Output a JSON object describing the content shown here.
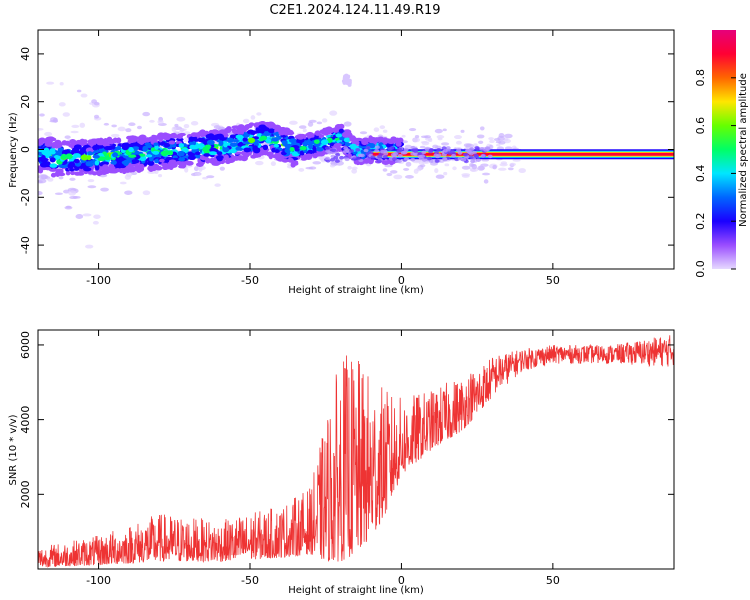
{
  "title": "C2E1.2024.124.11.49.R19",
  "chart_data": [
    {
      "type": "heatmap",
      "xlabel": "Height of straight line (km)",
      "ylabel": "Frequency (Hz)",
      "xlim": [
        -120,
        90
      ],
      "ylim": [
        -50,
        50
      ],
      "x_ticks": [
        -100,
        -50,
        0,
        50
      ],
      "y_ticks": [
        -40,
        -20,
        0,
        20,
        40
      ],
      "colorbar": {
        "label": "Normalized spectral amplitude",
        "range": [
          0,
          1
        ],
        "ticks": [
          "0.0",
          "0.2",
          "0.4",
          "0.6",
          "0.8"
        ],
        "colors": [
          "#e6d9ff",
          "#9a4dff",
          "#1a00ff",
          "#0066ff",
          "#00e6ff",
          "#00ff66",
          "#66ff00",
          "#ffe600",
          "#ff6600",
          "#ff0033",
          "#e6007a"
        ]
      },
      "ridge_points": [
        {
          "x": -115,
          "y": -4
        },
        {
          "x": -100,
          "y": -3
        },
        {
          "x": -80,
          "y": -1
        },
        {
          "x": -60,
          "y": 1
        },
        {
          "x": -45,
          "y": 5
        },
        {
          "x": -35,
          "y": 0
        },
        {
          "x": -20,
          "y": 5
        },
        {
          "x": -15,
          "y": -1
        },
        {
          "x": -10,
          "y": 0
        },
        {
          "x": 0,
          "y": -1
        },
        {
          "x": 10,
          "y": -2
        },
        {
          "x": 90,
          "y": -2
        }
      ]
    },
    {
      "type": "line",
      "xlabel": "Height of straight line (km)",
      "ylabel": "SNR (10 * v/v)",
      "xlim": [
        -120,
        90
      ],
      "ylim": [
        0,
        6400
      ],
      "x_ticks": [
        -100,
        -50,
        0,
        50
      ],
      "y_ticks": [
        2000,
        4000,
        6000
      ],
      "color": "#ee3333",
      "envelope": [
        {
          "x": -120,
          "low": 50,
          "high": 600
        },
        {
          "x": -100,
          "low": 100,
          "high": 900
        },
        {
          "x": -80,
          "low": 200,
          "high": 1500
        },
        {
          "x": -60,
          "low": 200,
          "high": 1300
        },
        {
          "x": -40,
          "low": 300,
          "high": 1700
        },
        {
          "x": -30,
          "low": 400,
          "high": 2200
        },
        {
          "x": -25,
          "low": 200,
          "high": 4000
        },
        {
          "x": -20,
          "low": 200,
          "high": 5800
        },
        {
          "x": -15,
          "low": 400,
          "high": 5700
        },
        {
          "x": -10,
          "low": 800,
          "high": 5200
        },
        {
          "x": -5,
          "low": 1500,
          "high": 4800
        },
        {
          "x": 0,
          "low": 2500,
          "high": 4600
        },
        {
          "x": 10,
          "low": 3200,
          "high": 4800
        },
        {
          "x": 20,
          "low": 3700,
          "high": 5200
        },
        {
          "x": 30,
          "low": 4600,
          "high": 5700
        },
        {
          "x": 40,
          "low": 5300,
          "high": 5900
        },
        {
          "x": 50,
          "low": 5500,
          "high": 6000
        },
        {
          "x": 70,
          "low": 5500,
          "high": 6000
        },
        {
          "x": 90,
          "low": 5400,
          "high": 6300
        }
      ]
    }
  ]
}
